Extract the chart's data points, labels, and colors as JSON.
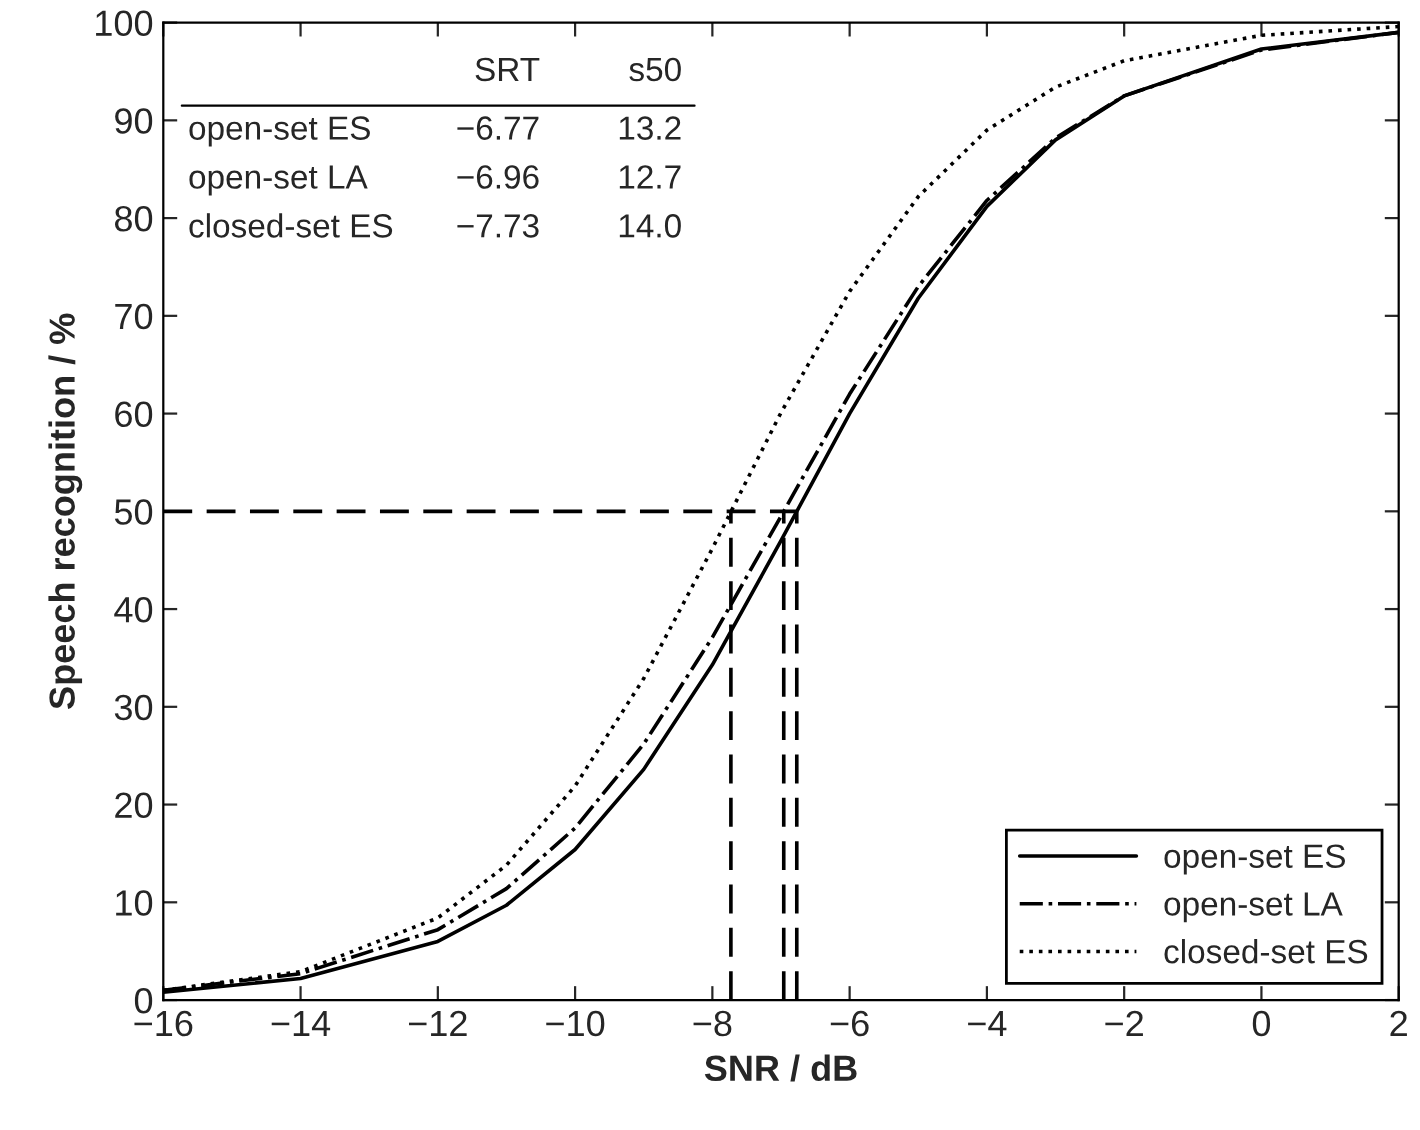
{
  "chart_data": {
    "type": "line",
    "xlabel": "SNR / dB",
    "ylabel": "Speech recognition / %",
    "x": [
      -16,
      -14,
      -12,
      -11,
      -10,
      -9,
      -8,
      -7,
      -6,
      -5,
      -4,
      -3,
      -2,
      0,
      2
    ],
    "xlim": [
      -16,
      2
    ],
    "xticks": [
      -16,
      -14,
      -12,
      -10,
      -8,
      -6,
      -4,
      -2,
      0,
      2
    ],
    "ylim": [
      0,
      100
    ],
    "yticks": [
      0,
      10,
      20,
      30,
      40,
      50,
      60,
      70,
      80,
      90,
      100
    ],
    "grid": false,
    "legend": "bottom right",
    "marker": "none",
    "series": [
      {
        "name": "open-set ES",
        "color": "#000000",
        "line_style": "solid",
        "values": [
          0.8,
          2.2,
          6.0,
          9.7,
          15.4,
          23.6,
          34.3,
          47.0,
          60.0,
          71.8,
          81.2,
          88.0,
          92.5,
          97.3,
          99.0
        ]
      },
      {
        "name": "open-set LA",
        "color": "#000000",
        "line_style": "dashdot",
        "values": [
          1.0,
          2.7,
          7.2,
          11.4,
          17.6,
          26.2,
          37.1,
          49.5,
          62.0,
          73.0,
          81.8,
          88.2,
          92.5,
          97.2,
          99.0
        ]
      },
      {
        "name": "closed-set ES",
        "color": "#000000",
        "line_style": "dotted",
        "values": [
          1.0,
          2.9,
          8.4,
          13.8,
          21.9,
          32.9,
          46.2,
          60.1,
          72.5,
          82.2,
          89.0,
          93.4,
          96.1,
          98.7,
          99.6
        ]
      },
      {
        "color": "#000000",
        "line_style": "dashed",
        "x": [
          -16,
          -6.77
        ],
        "values": [
          50,
          50
        ]
      },
      {
        "color": "#000000",
        "line_style": "dashed",
        "x": [
          -7.73,
          -7.73
        ],
        "values": [
          0,
          50
        ]
      },
      {
        "color": "#000000",
        "line_style": "dashed",
        "x": [
          -6.96,
          -6.96
        ],
        "values": [
          0,
          50
        ]
      },
      {
        "color": "#000000",
        "line_style": "dashed",
        "x": [
          -6.77,
          -6.77
        ],
        "values": [
          0,
          50
        ]
      }
    ],
    "annotations": [
      "SRT",
      "s50",
      "open-set ES",
      "−6.77",
      "13.2",
      "open-set LA",
      "−6.96",
      "12.7",
      "closed-set ES",
      "−7.73",
      "14.0"
    ]
  }
}
